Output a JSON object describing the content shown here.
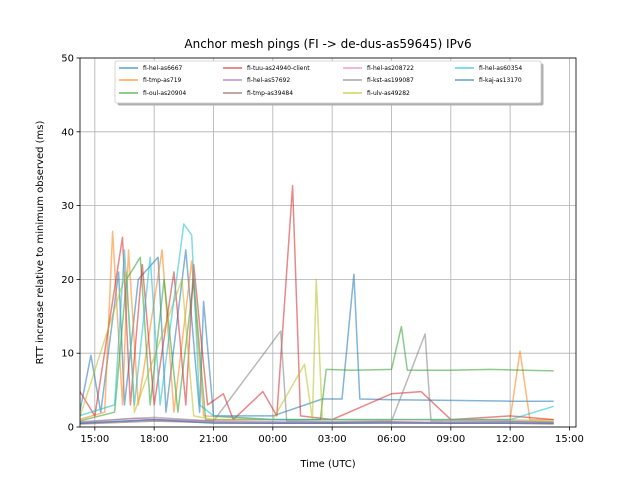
{
  "chart_data": {
    "type": "line",
    "title": "Anchor mesh pings (FI -> de-dus-as59645) IPv6",
    "xlabel": "Time (UTC)",
    "ylabel": "RTT increase relative to minimum observed (ms)",
    "xlim": [
      "14:15",
      "15:20 (+1 day)"
    ],
    "x_unit": "time of day (UTC), hours since 00:00 of first day",
    "ylim": [
      0,
      50
    ],
    "yticks": [
      0,
      10,
      20,
      30,
      40,
      50
    ],
    "xticks": [
      {
        "label": "15:00",
        "hour": 15
      },
      {
        "label": "18:00",
        "hour": 18
      },
      {
        "label": "21:00",
        "hour": 21
      },
      {
        "label": "00:00",
        "hour": 24
      },
      {
        "label": "03:00",
        "hour": 27
      },
      {
        "label": "06:00",
        "hour": 30
      },
      {
        "label": "09:00",
        "hour": 33
      },
      {
        "label": "12:00",
        "hour": 36
      },
      {
        "label": "15:00",
        "hour": 39
      }
    ],
    "grid": true,
    "legend": "upper-center",
    "series": [
      {
        "name": "fi-hel-as6667",
        "color": "#1f77b4",
        "points": [
          [
            14.2,
            1.5
          ],
          [
            14.8,
            9.7
          ],
          [
            15.3,
            2
          ],
          [
            16.2,
            21
          ],
          [
            16.5,
            3
          ],
          [
            17.2,
            20
          ],
          [
            18.2,
            23
          ],
          [
            18.6,
            2
          ],
          [
            19.6,
            24
          ],
          [
            20.3,
            2
          ],
          [
            20.5,
            17
          ],
          [
            21,
            1.5
          ],
          [
            24,
            1.5
          ],
          [
            26.5,
            3.8
          ],
          [
            27.5,
            3.8
          ],
          [
            28.1,
            20.7
          ],
          [
            28.4,
            3.8
          ],
          [
            30,
            3.7
          ],
          [
            33,
            3.6
          ],
          [
            36,
            3.5
          ],
          [
            38.2,
            3.5
          ]
        ]
      },
      {
        "name": "fi-tmp-as719",
        "color": "#ff7f0e",
        "points": [
          [
            14.2,
            1
          ],
          [
            15.5,
            2
          ],
          [
            15.9,
            26.5
          ],
          [
            16.4,
            3
          ],
          [
            16.7,
            24
          ],
          [
            17.2,
            3
          ],
          [
            18.4,
            24
          ],
          [
            19,
            2
          ],
          [
            19.9,
            22.5
          ],
          [
            20.5,
            1.5
          ],
          [
            24,
            1
          ],
          [
            30,
            1
          ],
          [
            33,
            1
          ],
          [
            36,
            1
          ],
          [
            36.5,
            10.3
          ],
          [
            37,
            1
          ],
          [
            38.2,
            1
          ]
        ]
      },
      {
        "name": "fi-oul-as20904",
        "color": "#2ca02c",
        "points": [
          [
            14.2,
            0.8
          ],
          [
            16,
            2
          ],
          [
            16.6,
            20
          ],
          [
            17.3,
            23
          ],
          [
            17.8,
            3
          ],
          [
            18.5,
            20
          ],
          [
            19.2,
            2
          ],
          [
            20,
            20
          ],
          [
            20.6,
            1
          ],
          [
            24,
            1
          ],
          [
            26.4,
            1
          ],
          [
            26.7,
            7.8
          ],
          [
            28,
            7.7
          ],
          [
            30,
            7.8
          ],
          [
            30.5,
            13.6
          ],
          [
            30.8,
            7.7
          ],
          [
            33,
            7.7
          ],
          [
            35,
            7.8
          ],
          [
            38.2,
            7.6
          ]
        ]
      },
      {
        "name": "fi-tuu-as24940-client",
        "color": "#d62728",
        "points": [
          [
            14.2,
            5
          ],
          [
            15,
            1.5
          ],
          [
            16.4,
            25.7
          ],
          [
            16.8,
            3
          ],
          [
            17.4,
            22
          ],
          [
            18,
            3
          ],
          [
            19,
            21
          ],
          [
            19.6,
            3
          ],
          [
            20,
            22
          ],
          [
            20.7,
            3
          ],
          [
            21.5,
            4.5
          ],
          [
            22,
            1
          ],
          [
            23.5,
            4.8
          ],
          [
            24.2,
            1.5
          ],
          [
            25,
            32.7
          ],
          [
            25.4,
            1.5
          ],
          [
            27,
            1
          ],
          [
            30,
            4.5
          ],
          [
            31.5,
            4.8
          ],
          [
            33,
            1
          ],
          [
            36,
            1.5
          ],
          [
            38.2,
            1
          ]
        ]
      },
      {
        "name": "fi-hel-as57692",
        "color": "#9467bd",
        "points": [
          [
            14.2,
            0.5
          ],
          [
            18,
            1
          ],
          [
            21,
            0.8
          ],
          [
            24,
            0.7
          ],
          [
            27,
            0.6
          ],
          [
            30,
            0.7
          ],
          [
            33,
            0.6
          ],
          [
            36,
            0.7
          ],
          [
            38.2,
            0.6
          ]
        ]
      },
      {
        "name": "fi-tmp-as39484",
        "color": "#8c564b",
        "points": [
          [
            14.2,
            0.4
          ],
          [
            18,
            0.8
          ],
          [
            21,
            0.6
          ],
          [
            24,
            0.5
          ],
          [
            27,
            0.5
          ],
          [
            30,
            0.6
          ],
          [
            33,
            0.5
          ],
          [
            36,
            0.5
          ],
          [
            38.2,
            0.4
          ]
        ]
      },
      {
        "name": "fi-hel-as208722",
        "color": "#e377c2",
        "points": [
          [
            14.2,
            0.6
          ],
          [
            17,
            1.2
          ],
          [
            21,
            0.7
          ],
          [
            24,
            0.6
          ],
          [
            27,
            0.6
          ],
          [
            30,
            0.7
          ],
          [
            33,
            0.6
          ],
          [
            36,
            0.7
          ],
          [
            38.2,
            0.5
          ]
        ]
      },
      {
        "name": "fi-kst-as199087",
        "color": "#7f7f7f",
        "points": [
          [
            14.2,
            0.7
          ],
          [
            18,
            1.3
          ],
          [
            21,
            0.8
          ],
          [
            24.4,
            13
          ],
          [
            24.7,
            0.8
          ],
          [
            27,
            0.7
          ],
          [
            30,
            0.8
          ],
          [
            31.7,
            12.6
          ],
          [
            32,
            0.8
          ],
          [
            36,
            0.8
          ],
          [
            38.2,
            0.7
          ]
        ]
      },
      {
        "name": "fi-ulv-as49282",
        "color": "#bcbd22",
        "points": [
          [
            14.2,
            1
          ],
          [
            16.6,
            21
          ],
          [
            17,
            2
          ],
          [
            19.4,
            20
          ],
          [
            20,
            1.5
          ],
          [
            21,
            1
          ],
          [
            24,
            1
          ],
          [
            25.6,
            8.5
          ],
          [
            26,
            1
          ],
          [
            26.2,
            20
          ],
          [
            26.5,
            1
          ],
          [
            30,
            1
          ],
          [
            33,
            1
          ],
          [
            36,
            1
          ],
          [
            38.2,
            0.8
          ]
        ]
      },
      {
        "name": "fi-hel-as60354",
        "color": "#17becf",
        "points": [
          [
            14.2,
            1.5
          ],
          [
            16,
            3
          ],
          [
            16.5,
            24
          ],
          [
            17,
            3
          ],
          [
            17.8,
            23
          ],
          [
            18.3,
            3
          ],
          [
            19.5,
            27.5
          ],
          [
            19.9,
            26
          ],
          [
            20.3,
            3
          ],
          [
            21,
            1.5
          ],
          [
            24,
            1
          ],
          [
            27,
            1
          ],
          [
            30,
            1
          ],
          [
            33,
            1
          ],
          [
            36,
            1
          ],
          [
            38.2,
            2.8
          ]
        ]
      },
      {
        "name": "fi-kaj-as13170",
        "color": "#1f77b4",
        "points": [
          [
            14.2,
            0.5
          ],
          [
            18,
            1
          ],
          [
            21,
            0.5
          ],
          [
            24,
            0.5
          ],
          [
            27,
            0.5
          ],
          [
            30,
            0.5
          ],
          [
            33,
            0.5
          ],
          [
            36,
            0.5
          ],
          [
            38.2,
            0.5
          ]
        ]
      }
    ]
  }
}
